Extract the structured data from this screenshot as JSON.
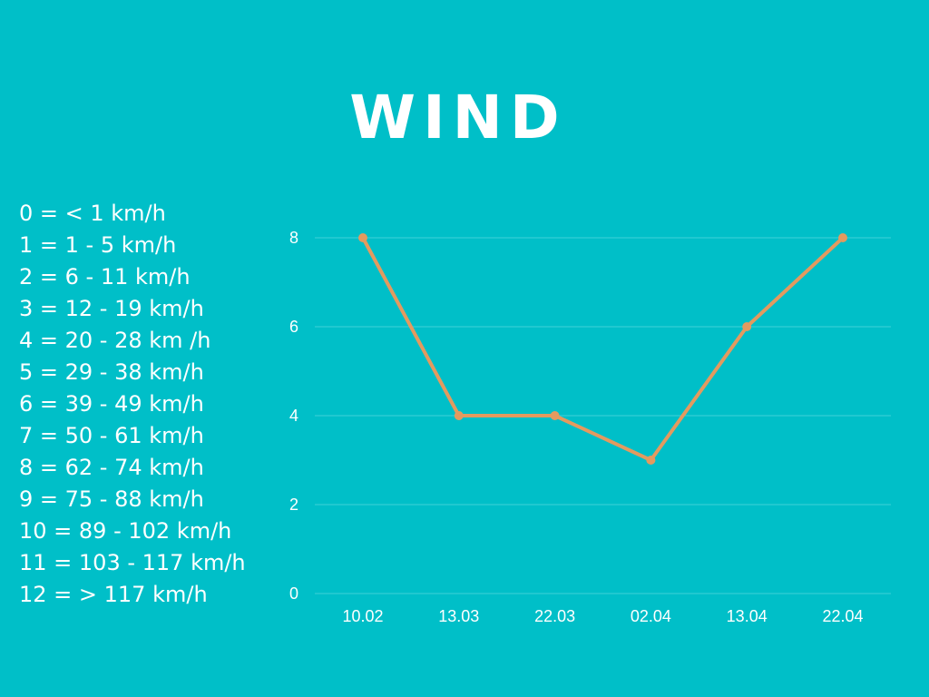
{
  "title": "WIND",
  "scale_legend": [
    "0 = < 1 km/h",
    "1 = 1 - 5 km/h",
    "2 = 6 - 11 km/h",
    "3 = 12 - 19 km/h",
    "4 = 20 - 28 km /h",
    "5 = 29 - 38 km/h",
    "6 = 39 - 49 km/h",
    "7 = 50 - 61 km/h",
    "8 = 62 - 74 km/h",
    "9 = 75 - 88 km/h",
    "10 = 89 - 102 km/h",
    "11 = 103 - 117 km/h",
    "12 = > 117 km/h"
  ],
  "colors": {
    "background": "#00bfc8",
    "line": "#e39a5f",
    "grid": "#3fd0d7",
    "text": "#ffffff"
  },
  "chart_data": {
    "type": "line",
    "title": "WIND",
    "xlabel": "",
    "ylabel": "",
    "categories": [
      "10.02",
      "13.03",
      "22.03",
      "02.04",
      "13.04",
      "22.04"
    ],
    "series": [
      {
        "values": [
          8,
          4,
          4,
          3,
          6,
          8
        ]
      }
    ],
    "ylim": [
      0,
      8
    ],
    "yticks": [
      "0",
      "2",
      "4",
      "6",
      "8"
    ],
    "grid": true,
    "legend": "none"
  }
}
